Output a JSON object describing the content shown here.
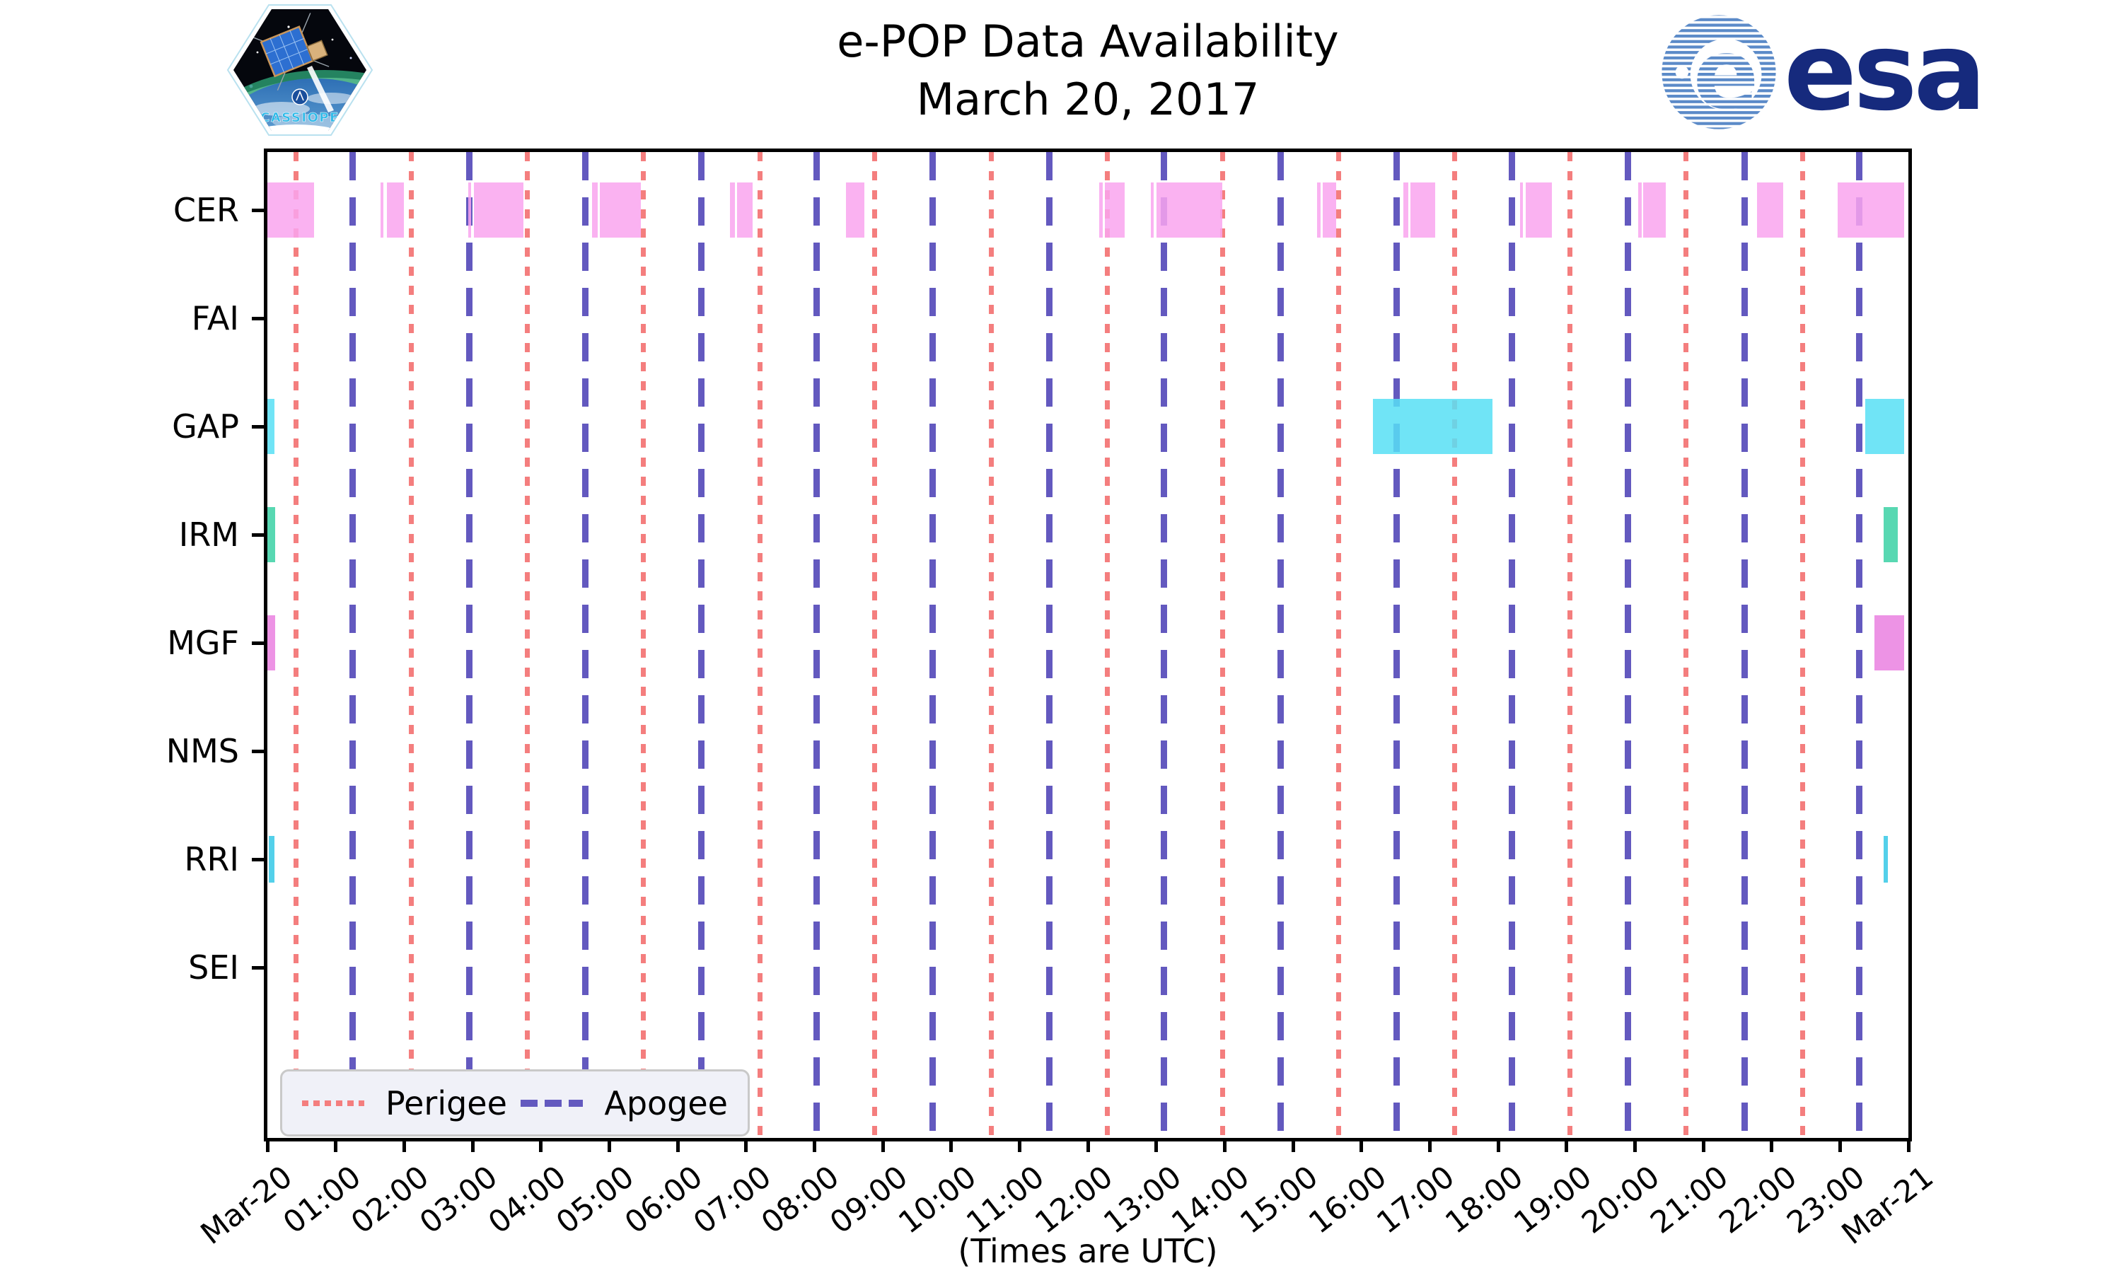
{
  "header": {
    "title_line1": "e-POP Data Availability",
    "title_line2": "March 20, 2017",
    "patch_text": "CASSIOPE",
    "esa_wordmark": "esa"
  },
  "axis": {
    "x_label": "(Times are UTC)",
    "x_tick_labels": [
      "Mar-20",
      "01:00",
      "02:00",
      "03:00",
      "04:00",
      "05:00",
      "06:00",
      "07:00",
      "08:00",
      "09:00",
      "10:00",
      "11:00",
      "12:00",
      "13:00",
      "14:00",
      "15:00",
      "16:00",
      "17:00",
      "18:00",
      "19:00",
      "20:00",
      "21:00",
      "22:00",
      "23:00",
      "Mar-21"
    ],
    "y_labels": [
      "CER",
      "FAI",
      "GAP",
      "IRM",
      "MGF",
      "NMS",
      "RRI",
      "SEI"
    ]
  },
  "legend": {
    "perigee_label": "Perigee",
    "apogee_label": "Apogee"
  },
  "colors": {
    "perigee_line": "#f47e7e",
    "apogee_line": "#6359bf",
    "cer_bar": "#f9a5ee",
    "gap_bar": "#57dff5",
    "irm_bar": "#3bd1a4",
    "mgf_bar": "#ea80e0",
    "rri_bar": "#35c8e6",
    "esa_blue": "#162a7d",
    "esa_sphere": "#5b8ac8",
    "cassiope_text": "#2cb9e8"
  },
  "chart_data": {
    "type": "availability-timeline",
    "title": "e-POP Data Availability",
    "subtitle": "March 20, 2017",
    "x_range": [
      "Mar-20 00:00",
      "Mar-21 00:00"
    ],
    "x_unit": "UTC",
    "grid": false,
    "legend_position": "lower left",
    "rows": [
      {
        "instrument": "CER",
        "color": "#f9a5ee",
        "intervals": [
          [
            "00:00",
            "00:41"
          ],
          [
            "01:39",
            "01:42"
          ],
          [
            "01:45",
            "02:00"
          ],
          [
            "02:56",
            "02:59"
          ],
          [
            "03:01",
            "03:45"
          ],
          [
            "04:45",
            "04:50"
          ],
          [
            "04:52",
            "05:28"
          ],
          [
            "06:46",
            "06:50"
          ],
          [
            "06:52",
            "07:06"
          ],
          [
            "08:28",
            "08:44"
          ],
          [
            "12:10",
            "12:13"
          ],
          [
            "12:15",
            "12:32"
          ],
          [
            "12:55",
            "12:58"
          ],
          [
            "13:00",
            "13:58"
          ],
          [
            "15:21",
            "15:24"
          ],
          [
            "15:26",
            "15:38"
          ],
          [
            "16:37",
            "16:41"
          ],
          [
            "16:43",
            "17:05"
          ],
          [
            "18:19",
            "18:22"
          ],
          [
            "18:24",
            "18:47"
          ],
          [
            "20:03",
            "20:06"
          ],
          [
            "20:07",
            "20:27"
          ],
          [
            "21:47",
            "22:10"
          ],
          [
            "22:58",
            "23:56"
          ]
        ]
      },
      {
        "instrument": "FAI",
        "color": null,
        "intervals": []
      },
      {
        "instrument": "GAP",
        "color": "#57dff5",
        "intervals": [
          [
            "00:00",
            "00:06"
          ],
          [
            "16:10",
            "17:55"
          ],
          [
            "23:22",
            "23:56"
          ]
        ]
      },
      {
        "instrument": "IRM",
        "color": "#3bd1a4",
        "intervals": [
          [
            "00:00",
            "00:07"
          ],
          [
            "23:38",
            "23:51"
          ]
        ]
      },
      {
        "instrument": "MGF",
        "color": "#ea80e0",
        "intervals": [
          [
            "00:00",
            "00:07"
          ],
          [
            "23:30",
            "23:56"
          ]
        ]
      },
      {
        "instrument": "NMS",
        "color": null,
        "intervals": []
      },
      {
        "instrument": "RRI",
        "color": "#35c8e6",
        "intervals": [
          [
            "00:01",
            "00:06"
          ],
          [
            "23:38",
            "23:42"
          ]
        ]
      },
      {
        "instrument": "SEI",
        "color": null,
        "intervals": []
      }
    ],
    "perigee_times_utc": [
      "00:25",
      "02:06",
      "03:48",
      "05:30",
      "07:12",
      "08:53",
      "10:35",
      "12:17",
      "13:58",
      "15:40",
      "17:22",
      "19:03",
      "20:45",
      "22:27"
    ],
    "apogee_times_utc": [
      "01:15",
      "02:57",
      "04:39",
      "06:21",
      "08:02",
      "09:44",
      "11:26",
      "13:07",
      "14:49",
      "16:31",
      "18:12",
      "19:54",
      "21:36",
      "23:17"
    ]
  }
}
